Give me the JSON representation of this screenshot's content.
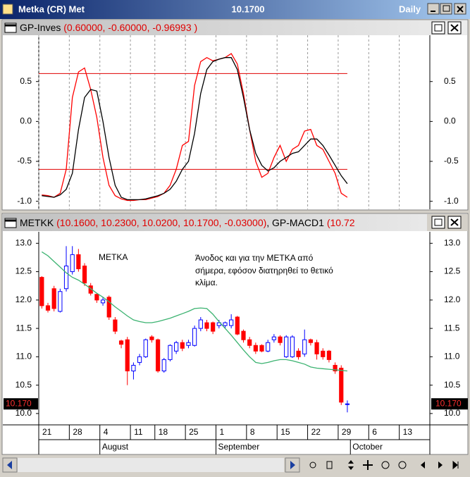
{
  "window": {
    "title": "Metka (CR) Met",
    "price": "10.1700",
    "period": "Daily"
  },
  "chart_data": [
    {
      "type": "line",
      "name": "GP-Inves",
      "params": "(0.60000, -0.60000, -0.96993 )",
      "ylim": [
        -1.1,
        1.08
      ],
      "yticks": [
        0.5,
        {
          "value": 0,
          "label": "0.0"
        },
        -0.5,
        {
          "value": -1,
          "label": "-1.0"
        }
      ],
      "grid": true,
      "hlines": [
        0.6,
        -0.6
      ],
      "hline_color": "#e00000",
      "series": [
        {
          "color": "#ff0000",
          "values": [
            -0.92,
            -0.93,
            -0.95,
            -0.9,
            -0.6,
            0.3,
            0.62,
            0.67,
            0.4,
            0.05,
            -0.45,
            -0.8,
            -0.93,
            -0.97,
            -0.99,
            -0.99,
            -0.98,
            -0.98,
            -0.96,
            -0.94,
            -0.9,
            -0.8,
            -0.6,
            -0.3,
            -0.25,
            0.45,
            0.75,
            0.8,
            0.76,
            0.78,
            0.8,
            0.85,
            0.72,
            0.35,
            -0.1,
            -0.5,
            -0.7,
            -0.65,
            -0.45,
            -0.3,
            -0.5,
            -0.35,
            -0.3,
            -0.12,
            -0.1,
            -0.3,
            -0.35,
            -0.5,
            -0.65,
            -0.9,
            -0.95,
            null,
            null,
            null,
            null,
            null,
            null,
            null,
            null,
            null,
            null,
            null,
            null,
            null
          ]
        },
        {
          "color": "#000000",
          "values": [
            -0.93,
            -0.94,
            -0.95,
            -0.92,
            -0.85,
            -0.65,
            -0.1,
            0.3,
            0.4,
            0.38,
            0.0,
            -0.45,
            -0.8,
            -0.95,
            -0.98,
            -0.98,
            -0.98,
            -0.97,
            -0.95,
            -0.93,
            -0.9,
            -0.85,
            -0.75,
            -0.6,
            -0.5,
            -0.15,
            0.35,
            0.65,
            0.75,
            0.78,
            0.8,
            0.8,
            0.65,
            0.3,
            -0.1,
            -0.4,
            -0.55,
            -0.62,
            -0.58,
            -0.5,
            -0.45,
            -0.4,
            -0.38,
            -0.3,
            -0.22,
            -0.22,
            -0.3,
            -0.42,
            -0.55,
            -0.68,
            -0.78,
            null,
            null,
            null,
            null,
            null,
            null,
            null,
            null,
            null,
            null,
            null,
            null,
            null
          ]
        }
      ]
    },
    {
      "type": "candlestick",
      "name": "METKK",
      "params": "(10.1600, 10.2300, 10.0200, 10.1700, -0.03000)",
      "indicator": ", GP-MACD1",
      "indicator_params": "(10.72",
      "categories": [
        "21",
        null,
        null,
        null,
        null,
        "28",
        null,
        null,
        null,
        null,
        "4",
        null,
        null,
        null,
        null,
        "11",
        null,
        null,
        null,
        "18",
        null,
        null,
        null,
        null,
        "25",
        null,
        null,
        null,
        null,
        "1",
        null,
        null,
        null,
        null,
        "8",
        null,
        null,
        null,
        null,
        "15",
        null,
        null,
        null,
        null,
        "22",
        null,
        null,
        null,
        null,
        "29",
        null,
        null,
        null,
        null,
        "6",
        null,
        null,
        null,
        null,
        "13",
        null,
        null,
        null,
        null
      ],
      "months": [
        null,
        null,
        null,
        null,
        null,
        null,
        null,
        null,
        null,
        null,
        "August",
        null,
        null,
        null,
        null,
        null,
        null,
        null,
        null,
        null,
        null,
        null,
        null,
        null,
        null,
        null,
        null,
        null,
        null,
        "September",
        null,
        null,
        null,
        null,
        null,
        null,
        null,
        null,
        null,
        null,
        null,
        null,
        null,
        null,
        null,
        null,
        null,
        null,
        null,
        null,
        null,
        "October",
        null,
        null,
        null,
        null,
        null,
        null,
        null,
        null,
        null,
        null,
        null,
        null
      ],
      "open": [
        12.4,
        11.9,
        12.2,
        11.8,
        12.2,
        12.5,
        12.8,
        12.6,
        12.25,
        12.1,
        11.95,
        12.05,
        11.65,
        11.28,
        11.3,
        10.75,
        10.9,
        11.0,
        11.35,
        11.3,
        10.75,
        10.95,
        11.1,
        11.25,
        11.2,
        11.2,
        11.5,
        11.6,
        11.6,
        11.55,
        11.55,
        11.55,
        11.7,
        11.45,
        11.3,
        11.2,
        11.2,
        11.1,
        11.3,
        11.35,
        11.0,
        11.0,
        11.1,
        11.05,
        11.3,
        11.25,
        11.1,
        11.1,
        10.85,
        10.8,
        10.16,
        null,
        null,
        null,
        null,
        null,
        null,
        null,
        null,
        null,
        null,
        null,
        null,
        null
      ],
      "high": [
        12.42,
        11.95,
        12.25,
        12.2,
        12.95,
        12.95,
        12.9,
        12.65,
        12.3,
        12.12,
        12.05,
        12.08,
        11.7,
        11.3,
        11.35,
        10.9,
        11.05,
        11.32,
        11.38,
        11.32,
        10.98,
        11.22,
        11.28,
        11.3,
        11.3,
        11.55,
        11.7,
        11.65,
        11.62,
        11.65,
        11.62,
        11.75,
        11.72,
        11.48,
        11.35,
        11.25,
        11.22,
        11.3,
        11.4,
        11.38,
        11.38,
        11.38,
        11.15,
        11.48,
        11.32,
        11.3,
        11.15,
        11.12,
        10.9,
        10.85,
        10.23,
        null,
        null,
        null,
        null,
        null,
        null,
        null,
        null,
        null,
        null,
        null,
        null,
        null
      ],
      "low": [
        11.85,
        11.78,
        11.8,
        11.78,
        12.15,
        12.45,
        12.5,
        12.25,
        12.08,
        11.95,
        11.9,
        11.65,
        11.4,
        11.15,
        10.5,
        10.6,
        10.85,
        10.98,
        11.25,
        10.72,
        10.72,
        10.92,
        11.05,
        11.1,
        11.15,
        11.18,
        11.45,
        11.45,
        11.4,
        11.5,
        11.5,
        11.5,
        11.38,
        11.25,
        11.15,
        11.05,
        11.08,
        11.08,
        11.25,
        11.2,
        10.98,
        10.98,
        10.95,
        11.0,
        11.2,
        10.95,
        10.95,
        10.9,
        10.7,
        10.15,
        10.02,
        null,
        null,
        null,
        null,
        null,
        null,
        null,
        null,
        null,
        null,
        null,
        null,
        null
      ],
      "close": [
        11.9,
        11.82,
        11.85,
        12.15,
        12.6,
        12.8,
        12.55,
        12.3,
        12.12,
        12.0,
        12.0,
        11.7,
        11.45,
        11.22,
        10.75,
        10.85,
        11.0,
        11.3,
        11.3,
        10.75,
        10.95,
        11.2,
        11.25,
        11.15,
        11.25,
        11.5,
        11.65,
        11.5,
        11.45,
        11.6,
        11.6,
        11.65,
        11.4,
        11.3,
        11.2,
        11.1,
        11.1,
        11.25,
        11.35,
        11.25,
        11.35,
        11.35,
        11.0,
        11.3,
        11.25,
        11.05,
        11.0,
        10.95,
        10.75,
        10.2,
        10.17,
        null,
        null,
        null,
        null,
        null,
        null,
        null,
        null,
        null,
        null,
        null,
        null,
        null
      ],
      "up_color": "#0000ff",
      "down_color": "#ff0000",
      "overlays": [
        {
          "color": "#3cb371",
          "values": [
            12.85,
            12.78,
            12.68,
            12.58,
            12.48,
            12.4,
            12.35,
            12.28,
            12.2,
            12.12,
            12.05,
            11.97,
            11.88,
            11.8,
            11.72,
            11.65,
            11.62,
            11.6,
            11.6,
            11.62,
            11.65,
            11.68,
            11.72,
            11.76,
            11.8,
            11.85,
            11.86,
            11.85,
            11.75,
            11.62,
            11.5,
            11.38,
            11.25,
            11.12,
            11.0,
            10.9,
            10.88,
            10.9,
            10.93,
            10.95,
            10.95,
            10.93,
            10.9,
            10.87,
            10.82,
            10.8,
            10.79,
            10.78,
            10.77,
            10.76,
            10.75,
            null,
            null,
            null,
            null,
            null,
            null,
            null,
            null,
            null,
            null,
            null,
            null,
            null
          ]
        }
      ],
      "ylim": [
        9.8,
        13.19
      ],
      "yticks": [
        {
          "value": 13,
          "label": "13.0"
        },
        12.5,
        {
          "value": 12,
          "label": "12.0"
        },
        11.5,
        {
          "value": 11,
          "label": "11.0"
        },
        10.5,
        {
          "value": 10,
          "label": "10.0"
        }
      ],
      "grid": false,
      "last_label": "10.170",
      "annotations": [
        "METKA",
        "Άνοδος και για την ΜΕΤΚΑ από",
        "σήμερα, εφόσον διατηρηθεί το θετικό",
        "κλίμα."
      ]
    }
  ]
}
